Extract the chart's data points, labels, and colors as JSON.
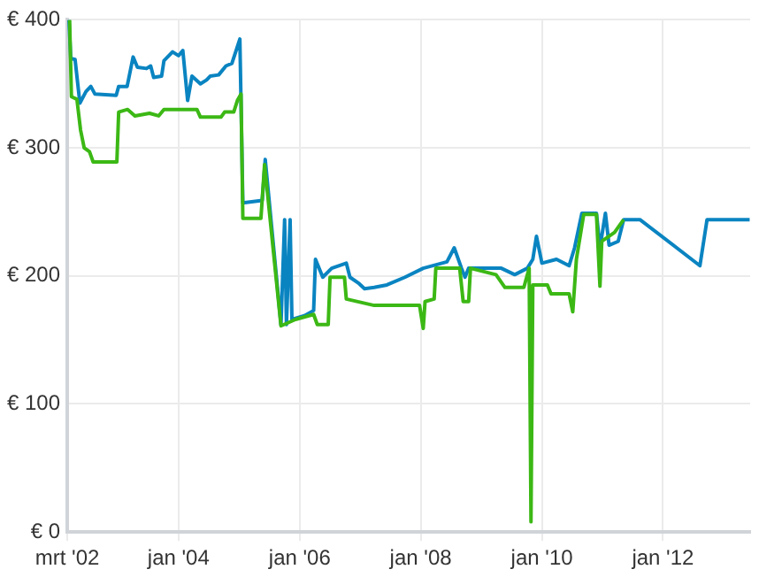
{
  "chart_data": {
    "type": "line",
    "xlim": [
      "2002-03-01",
      "2013-06-10"
    ],
    "xticks": [
      {
        "value": "2002-03",
        "label": "mrt '02"
      },
      {
        "value": "2004-01",
        "label": "jan '04"
      },
      {
        "value": "2006-01",
        "label": "jan '06"
      },
      {
        "value": "2008-01",
        "label": "jan '08"
      },
      {
        "value": "2010-01",
        "label": "jan '10"
      },
      {
        "value": "2012-01",
        "label": "jan '12"
      }
    ],
    "ylim": [
      0,
      400
    ],
    "yticks": [
      {
        "value": 0,
        "label": "€ 0"
      },
      {
        "value": 100,
        "label": "€ 100"
      },
      {
        "value": 200,
        "label": "€ 200"
      },
      {
        "value": 300,
        "label": "€ 300"
      },
      {
        "value": 400,
        "label": "€ 400"
      }
    ],
    "grid": true,
    "legend": false,
    "marker": "none",
    "line_style": "solid",
    "series": [
      {
        "color": "#3cb815",
        "x": [
          "2002-03-15",
          "2002-03-26",
          "2002-04-28",
          "2002-05-20",
          "2002-06-11",
          "2002-07-13",
          "2002-08-04",
          "2002-12-25",
          "2003-01-05",
          "2003-02-28",
          "2003-04-13",
          "2003-07-10",
          "2003-09-03",
          "2003-10-05",
          "2004-04-21",
          "2004-05-12",
          "2004-09-13",
          "2004-10-05",
          "2004-11-29",
          "2004-12-21",
          "2005-01-12",
          "2005-01-23",
          "2005-05-12",
          "2005-06-03",
          "2005-09-10",
          "2005-12-06",
          "2006-03-26",
          "2006-04-17",
          "2006-06-22",
          "2006-07-03",
          "2006-09-28",
          "2006-10-09",
          "2007-03-26",
          "2007-12-25",
          "2008-01-16",
          "2008-01-27",
          "2008-03-22",
          "2008-04-01",
          "2008-08-23",
          "2008-09-13",
          "2008-10-16",
          "2008-10-27",
          "2009-03-30",
          "2009-05-23",
          "2009-09-14",
          "2009-10-16",
          "2009-10-27",
          "2009-11-07",
          "2010-02-03",
          "2010-02-25",
          "2010-06-14",
          "2010-07-06",
          "2010-07-28",
          "2010-09-10",
          "2010-11-26",
          "2010-12-17",
          "2010-12-28",
          "2011-03-15",
          "2011-05-09"
        ],
        "values": [
          400,
          340,
          338,
          314,
          300,
          297,
          289,
          289,
          328,
          330,
          325,
          327,
          325,
          330,
          330,
          324,
          324,
          328,
          328,
          337,
          342,
          245,
          245,
          287,
          161,
          166,
          170,
          162,
          162,
          199,
          199,
          182,
          177,
          177,
          159,
          180,
          182,
          206,
          206,
          180,
          180,
          206,
          201,
          191,
          191,
          206,
          8,
          193,
          193,
          186,
          186,
          172,
          213,
          248,
          248,
          192,
          227,
          234,
          244
        ]
      },
      {
        "color": "#0a84c1",
        "x": [
          "2002-03-11",
          "2002-03-22",
          "2002-04-17",
          "2002-05-16",
          "2002-06-22",
          "2002-07-21",
          "2002-08-15",
          "2002-12-21",
          "2003-01-05",
          "2003-02-25",
          "2003-04-02",
          "2003-04-28",
          "2003-06-22",
          "2003-07-17",
          "2003-08-04",
          "2003-09-21",
          "2003-10-05",
          "2003-11-26",
          "2004-01-01",
          "2004-01-27",
          "2004-02-25",
          "2004-03-22",
          "2004-05-12",
          "2004-06-18",
          "2004-07-10",
          "2004-08-30",
          "2004-10-13",
          "2004-11-18",
          "2005-01-05",
          "2005-01-23",
          "2005-05-20",
          "2005-06-07",
          "2005-09-10",
          "2005-10-02",
          "2005-10-13",
          "2005-11-04",
          "2005-11-15",
          "2006-01-30",
          "2006-03-26",
          "2006-04-06",
          "2006-05-20",
          "2006-07-13",
          "2006-10-09",
          "2006-10-31",
          "2006-12-25",
          "2007-01-27",
          "2007-03-26",
          "2007-06-11",
          "2007-09-28",
          "2008-01-16",
          "2008-06-07",
          "2008-07-21",
          "2008-09-03",
          "2008-09-24",
          "2008-10-16",
          "2009-05-01",
          "2009-07-21",
          "2009-10-05",
          "2009-11-07",
          "2009-11-29",
          "2010-01-01",
          "2010-03-30",
          "2010-06-14",
          "2010-07-17",
          "2010-08-30",
          "2010-11-26",
          "2010-12-17",
          "2011-01-19",
          "2011-02-10",
          "2011-04-06",
          "2011-05-09",
          "2011-08-15",
          "2012-08-11",
          "2012-09-23",
          "2013-06-07"
        ],
        "values": [
          400,
          370,
          369,
          335,
          344,
          348,
          342,
          341,
          348,
          348,
          371,
          363,
          362,
          364,
          355,
          356,
          368,
          375,
          372,
          376,
          337,
          356,
          350,
          353,
          356,
          357,
          364,
          366,
          385,
          257,
          259,
          291,
          162,
          244,
          162,
          244,
          166,
          169,
          173,
          213,
          199,
          206,
          210,
          199,
          194,
          190,
          191,
          193,
          199,
          206,
          211,
          222,
          206,
          199,
          206,
          206,
          201,
          206,
          213,
          231,
          210,
          213,
          208,
          222,
          249,
          249,
          222,
          249,
          224,
          227,
          244,
          244,
          208,
          244,
          244
        ]
      }
    ]
  }
}
